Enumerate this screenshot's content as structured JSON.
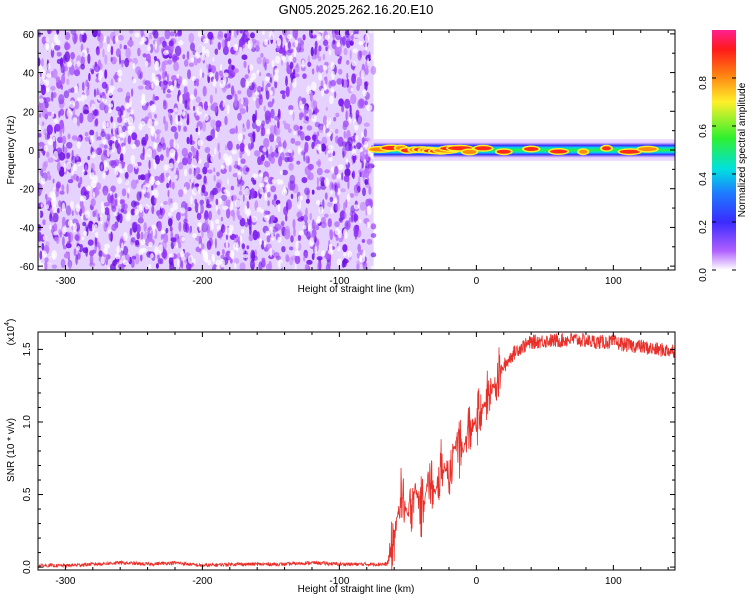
{
  "title": "GN05.2025.262.16.20.E10",
  "chart_data": [
    {
      "type": "heatmap",
      "title": "GN05.2025.262.16.20.E10",
      "xlabel": "Height of straight line (km)",
      "ylabel": "Frequency (Hz)",
      "xlim": [
        -320,
        145
      ],
      "ylim": [
        -62,
        62
      ],
      "xticks": [
        -300,
        -200,
        -100,
        0,
        100
      ],
      "yticks": [
        -60,
        -40,
        -20,
        0,
        20,
        40,
        60
      ],
      "description_regions": [
        {
          "x_range": [
            -320,
            -75
          ],
          "freq_range": [
            -62,
            62
          ],
          "content": "broadband noise",
          "amplitude_range": [
            0.0,
            0.15
          ]
        },
        {
          "x_range": [
            -75,
            145
          ],
          "freq_range": [
            -4,
            4
          ],
          "content": "narrow band near 0 Hz",
          "amplitude_range": [
            0.2,
            1.0
          ]
        }
      ],
      "colorbar": {
        "label": "Normalized spectral amplitude",
        "ticks": [
          "0.0",
          "0.2",
          "0.4",
          "0.6",
          "0.8"
        ],
        "range": [
          0,
          1
        ]
      }
    },
    {
      "type": "line",
      "xlabel": "Height of straight line (km)",
      "ylabel": "SNR (10 * v/v)",
      "multiplier_label": "(x10",
      "multiplier_exp": "4",
      "xlim": [
        -320,
        145
      ],
      "ylim": [
        -0.02,
        1.62
      ],
      "xticks": [
        -300,
        -200,
        -100,
        0,
        100
      ],
      "yticks": [
        "0.0",
        "0.5",
        "1.0",
        "1.5"
      ],
      "series_color": "#e8302a",
      "series": [
        {
          "x": [
            -320,
            -300,
            -280,
            -260,
            -240,
            -220,
            -200,
            -180,
            -160,
            -140,
            -120,
            -100,
            -80,
            -65,
            -60,
            -55,
            -50,
            -45,
            -40,
            -35,
            -30,
            -25,
            -20,
            -15,
            -10,
            -5,
            0,
            5,
            10,
            15,
            20,
            25,
            30,
            40,
            50,
            60,
            70,
            80,
            90,
            100,
            110,
            120,
            130,
            145
          ],
          "y": [
            0.01,
            0.01,
            0.02,
            0.03,
            0.02,
            0.03,
            0.01,
            0.02,
            0.02,
            0.02,
            0.03,
            0.02,
            0.02,
            0.02,
            0.2,
            0.5,
            0.35,
            0.55,
            0.4,
            0.6,
            0.5,
            0.7,
            0.65,
            0.85,
            0.8,
            0.95,
            1.0,
            1.1,
            1.2,
            1.3,
            1.38,
            1.45,
            1.5,
            1.55,
            1.56,
            1.56,
            1.57,
            1.56,
            1.55,
            1.55,
            1.53,
            1.52,
            1.5,
            1.49
          ]
        }
      ]
    }
  ]
}
